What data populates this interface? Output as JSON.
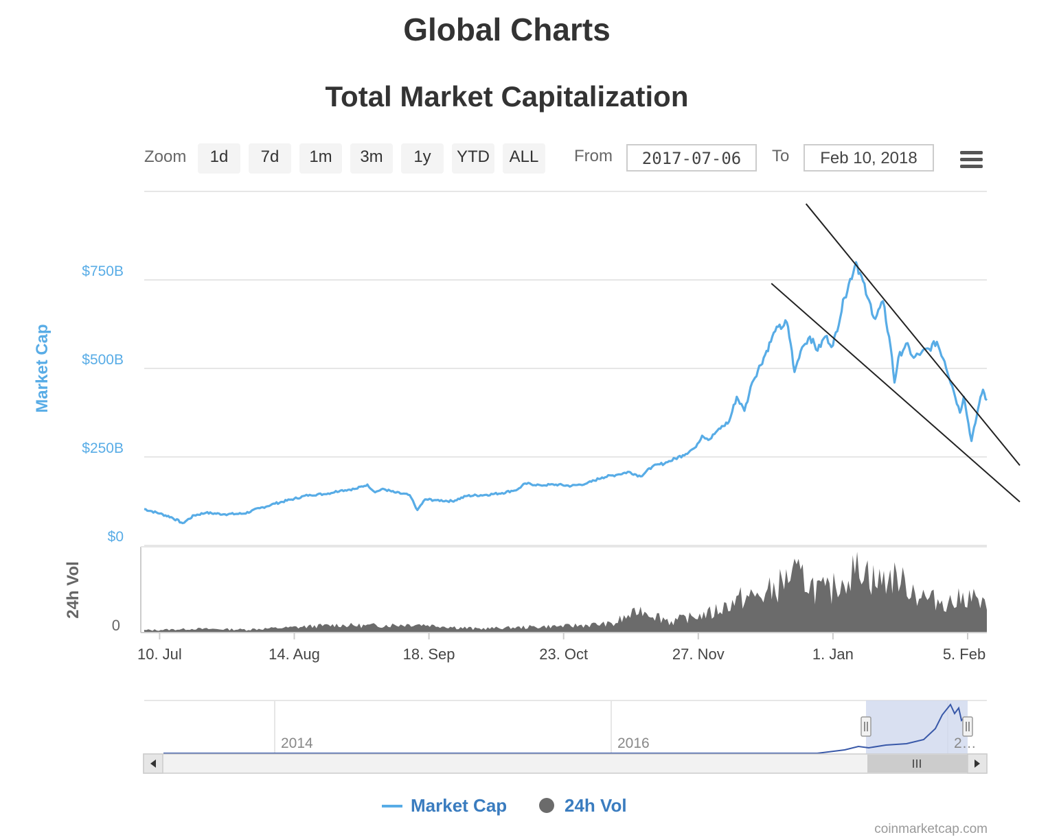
{
  "page": {
    "title": "Global Charts"
  },
  "toolbar": {
    "zoom_label": "Zoom",
    "zoom_buttons": [
      "1d",
      "7d",
      "1m",
      "3m",
      "1y",
      "YTD",
      "ALL"
    ],
    "from_label": "From",
    "from_value": "2017-07-06",
    "to_label": "To",
    "to_value": "Feb 10, 2018",
    "menu_icon": "hamburger-menu-icon"
  },
  "colors": {
    "market_cap": "#58ace6",
    "volume": "#6b6b6b",
    "legend_text": "#3a7cbf",
    "navigator_line": "#3858a8",
    "navigator_mask": "#cfd8ee",
    "trend_lines": "#222222"
  },
  "chart_data": {
    "type": "line",
    "title": "Total Market Capitalization",
    "x_range": [
      "2017-07-06",
      "2018-02-10"
    ],
    "x_ticks": [
      "10. Jul",
      "14. Aug",
      "18. Sep",
      "23. Oct",
      "27. Nov",
      "1. Jan",
      "5. Feb"
    ],
    "market_cap_axis": {
      "label": "Market Cap",
      "ticks": [
        "$0",
        "$250B",
        "$500B",
        "$750B"
      ],
      "tick_values": [
        0,
        250,
        500,
        750
      ],
      "unit": "billion USD",
      "ylim": [
        0,
        1000
      ]
    },
    "volume_axis": {
      "label": "24h Vol",
      "ticks": [
        "0"
      ]
    },
    "series": [
      {
        "name": "Market Cap",
        "points": [
          [
            "2017-07-06",
            103
          ],
          [
            "2017-07-10",
            90
          ],
          [
            "2017-07-13",
            80
          ],
          [
            "2017-07-16",
            63
          ],
          [
            "2017-07-19",
            85
          ],
          [
            "2017-07-22",
            92
          ],
          [
            "2017-07-27",
            88
          ],
          [
            "2017-08-01",
            90
          ],
          [
            "2017-08-05",
            105
          ],
          [
            "2017-08-09",
            118
          ],
          [
            "2017-08-14",
            132
          ],
          [
            "2017-08-18",
            143
          ],
          [
            "2017-08-22",
            145
          ],
          [
            "2017-08-26",
            155
          ],
          [
            "2017-08-30",
            160
          ],
          [
            "2017-09-02",
            172
          ],
          [
            "2017-09-04",
            150
          ],
          [
            "2017-09-06",
            160
          ],
          [
            "2017-09-09",
            150
          ],
          [
            "2017-09-13",
            142
          ],
          [
            "2017-09-15",
            100
          ],
          [
            "2017-09-17",
            130
          ],
          [
            "2017-09-20",
            128
          ],
          [
            "2017-09-24",
            125
          ],
          [
            "2017-09-28",
            140
          ],
          [
            "2017-10-03",
            143
          ],
          [
            "2017-10-07",
            148
          ],
          [
            "2017-10-11",
            158
          ],
          [
            "2017-10-13",
            175
          ],
          [
            "2017-10-17",
            170
          ],
          [
            "2017-10-21",
            172
          ],
          [
            "2017-10-25",
            168
          ],
          [
            "2017-10-29",
            175
          ],
          [
            "2017-11-02",
            192
          ],
          [
            "2017-11-06",
            200
          ],
          [
            "2017-11-09",
            208
          ],
          [
            "2017-11-12",
            195
          ],
          [
            "2017-11-15",
            222
          ],
          [
            "2017-11-19",
            235
          ],
          [
            "2017-11-23",
            255
          ],
          [
            "2017-11-26",
            275
          ],
          [
            "2017-11-28",
            310
          ],
          [
            "2017-11-30",
            300
          ],
          [
            "2017-12-02",
            325
          ],
          [
            "2017-12-05",
            350
          ],
          [
            "2017-12-07",
            420
          ],
          [
            "2017-12-09",
            380
          ],
          [
            "2017-12-11",
            460
          ],
          [
            "2017-12-14",
            530
          ],
          [
            "2017-12-17",
            605
          ],
          [
            "2017-12-20",
            630
          ],
          [
            "2017-12-21",
            570
          ],
          [
            "2017-12-22",
            490
          ],
          [
            "2017-12-24",
            560
          ],
          [
            "2017-12-26",
            590
          ],
          [
            "2017-12-28",
            550
          ],
          [
            "2017-12-30",
            590
          ],
          [
            "2018-01-01",
            565
          ],
          [
            "2018-01-04",
            700
          ],
          [
            "2018-01-07",
            800
          ],
          [
            "2018-01-08",
            770
          ],
          [
            "2018-01-10",
            700
          ],
          [
            "2018-01-12",
            640
          ],
          [
            "2018-01-14",
            690
          ],
          [
            "2018-01-16",
            560
          ],
          [
            "2018-01-17",
            460
          ],
          [
            "2018-01-18",
            530
          ],
          [
            "2018-01-20",
            570
          ],
          [
            "2018-01-22",
            530
          ],
          [
            "2018-01-24",
            545
          ],
          [
            "2018-01-26",
            555
          ],
          [
            "2018-01-28",
            575
          ],
          [
            "2018-01-30",
            520
          ],
          [
            "2018-02-01",
            450
          ],
          [
            "2018-02-03",
            375
          ],
          [
            "2018-02-04",
            420
          ],
          [
            "2018-02-06",
            295
          ],
          [
            "2018-02-07",
            345
          ],
          [
            "2018-02-08",
            400
          ],
          [
            "2018-02-09",
            440
          ],
          [
            "2018-02-10",
            410
          ]
        ]
      },
      {
        "name": "24h Vol",
        "unit": "relative (axis unlabeled above 0)",
        "points": [
          [
            "2017-07-06",
            0.03
          ],
          [
            "2017-07-20",
            0.05
          ],
          [
            "2017-08-01",
            0.04
          ],
          [
            "2017-08-14",
            0.07
          ],
          [
            "2017-08-25",
            0.1
          ],
          [
            "2017-09-02",
            0.09
          ],
          [
            "2017-09-15",
            0.11
          ],
          [
            "2017-09-30",
            0.05
          ],
          [
            "2017-10-12",
            0.07
          ],
          [
            "2017-10-25",
            0.09
          ],
          [
            "2017-11-05",
            0.12
          ],
          [
            "2017-11-12",
            0.3
          ],
          [
            "2017-11-20",
            0.15
          ],
          [
            "2017-11-30",
            0.25
          ],
          [
            "2017-12-08",
            0.45
          ],
          [
            "2017-12-15",
            0.5
          ],
          [
            "2017-12-22",
            0.8
          ],
          [
            "2017-12-30",
            0.5
          ],
          [
            "2018-01-05",
            0.75
          ],
          [
            "2018-01-09",
            0.9
          ],
          [
            "2018-01-12",
            0.65
          ],
          [
            "2018-01-17",
            0.75
          ],
          [
            "2018-01-25",
            0.45
          ],
          [
            "2018-02-01",
            0.4
          ],
          [
            "2018-02-06",
            0.5
          ],
          [
            "2018-02-10",
            0.3
          ]
        ]
      }
    ],
    "navigator": {
      "x_labels": [
        "2014",
        "2016",
        "2…"
      ],
      "selected_range": [
        "2017-07-06",
        "2018-02-10"
      ]
    },
    "trend_channel": {
      "upper": [
        [
          "2017-12-25",
          965
        ],
        [
          "2018-02-10",
          340
        ]
      ],
      "lower": [
        [
          "2017-12-16",
          740
        ],
        [
          "2018-02-10",
          205
        ]
      ]
    },
    "legend": {
      "position": "bottom-center",
      "items": [
        {
          "name": "Market Cap",
          "symbol": "line"
        },
        {
          "name": "24h Vol",
          "symbol": "circle"
        }
      ]
    },
    "credits": "coinmarketcap.com"
  }
}
